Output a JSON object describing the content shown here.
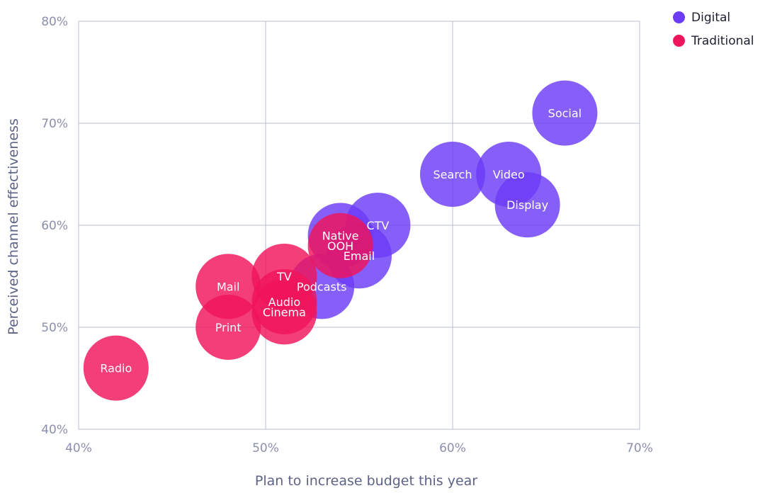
{
  "chart_data": {
    "type": "scatter",
    "xlabel": "Plan to increase budget this year",
    "ylabel": "Perceived channel effectiveness",
    "xlim": [
      40,
      70
    ],
    "ylim": [
      40,
      80
    ],
    "x_ticks": [
      "40%",
      "50%",
      "60%",
      "70%"
    ],
    "y_ticks": [
      "40%",
      "50%",
      "60%",
      "70%",
      "80%"
    ],
    "series": [
      {
        "name": "Digital",
        "color": "#6b3bf6",
        "points": [
          {
            "label": "Social",
            "x": 66,
            "y": 71
          },
          {
            "label": "Search",
            "x": 60,
            "y": 65
          },
          {
            "label": "Video",
            "x": 63,
            "y": 65
          },
          {
            "label": "Display",
            "x": 64,
            "y": 62
          },
          {
            "label": "CTV",
            "x": 56,
            "y": 60
          },
          {
            "label": "Native",
            "x": 54,
            "y": 59
          },
          {
            "label": "Email",
            "x": 55,
            "y": 57
          },
          {
            "label": "Podcasts",
            "x": 53,
            "y": 54
          }
        ]
      },
      {
        "name": "Traditional",
        "color": "#f0145a",
        "points": [
          {
            "label": "OOH",
            "x": 54,
            "y": 58
          },
          {
            "label": "TV",
            "x": 51,
            "y": 55
          },
          {
            "label": "Mail",
            "x": 48,
            "y": 54
          },
          {
            "label": "Audio",
            "x": 51,
            "y": 52.5
          },
          {
            "label": "Cinema",
            "x": 51,
            "y": 51.5
          },
          {
            "label": "Print",
            "x": 48,
            "y": 50
          },
          {
            "label": "Radio",
            "x": 42,
            "y": 46
          }
        ]
      }
    ]
  },
  "legend": {
    "items": [
      {
        "label": "Digital",
        "color": "#6b3bf6"
      },
      {
        "label": "Traditional",
        "color": "#f0145a"
      }
    ]
  }
}
